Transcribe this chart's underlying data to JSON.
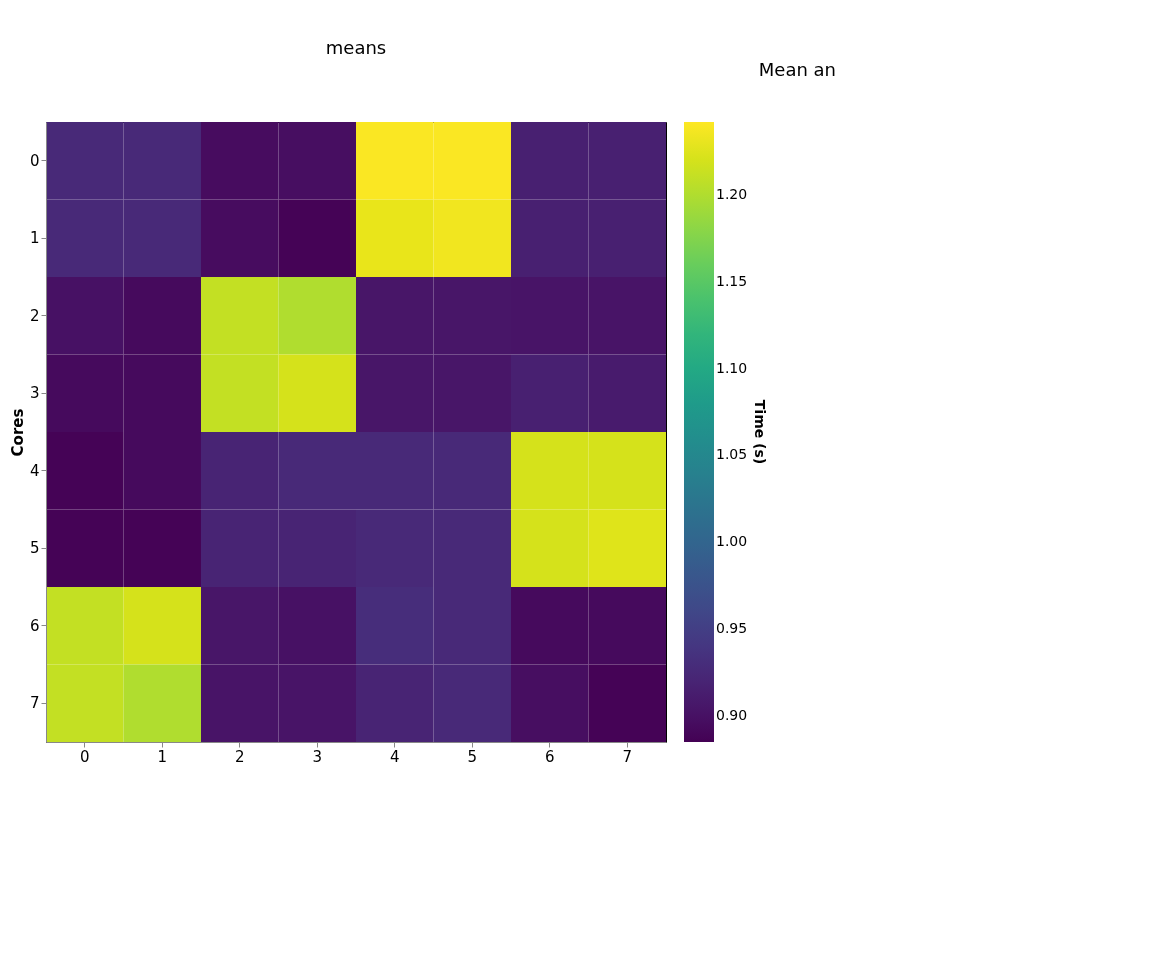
{
  "chart_data": {
    "type": "heatmap",
    "title": "means",
    "ylabel": "Cores",
    "clabel": "Time (s)",
    "annotations": [
      "Mean an"
    ],
    "categories": [
      "0",
      "1",
      "2",
      "3",
      "4",
      "5",
      "6",
      "7"
    ],
    "y_categories": [
      "0",
      "1",
      "2",
      "3",
      "4",
      "5",
      "6",
      "7"
    ],
    "cells": [
      [
        0.925,
        0.925,
        0.895,
        0.897,
        1.24,
        1.24,
        0.915,
        0.915
      ],
      [
        0.925,
        0.925,
        0.895,
        0.887,
        1.23,
        1.235,
        0.915,
        0.915
      ],
      [
        0.9,
        0.893,
        1.21,
        1.2,
        0.905,
        0.905,
        0.903,
        0.903
      ],
      [
        0.893,
        0.893,
        1.21,
        1.22,
        0.905,
        0.905,
        0.915,
        0.91
      ],
      [
        0.887,
        0.893,
        0.92,
        0.925,
        0.925,
        0.925,
        1.22,
        1.22
      ],
      [
        0.887,
        0.887,
        0.92,
        0.92,
        0.925,
        0.925,
        1.22,
        1.225
      ],
      [
        1.21,
        1.22,
        0.905,
        0.9,
        0.93,
        0.925,
        0.893,
        0.893
      ],
      [
        1.21,
        1.2,
        0.903,
        0.903,
        0.92,
        0.925,
        0.897,
        0.887
      ]
    ],
    "clim": [
      0.885,
      1.242
    ],
    "cticks": [
      {
        "value": 0.9,
        "label": "0.90"
      },
      0.95,
      {
        "value": 1.0,
        "label": "1.00"
      },
      1.05,
      {
        "value": 1.1,
        "label": "1.10"
      },
      1.15,
      {
        "value": 1.2,
        "label": "1.20"
      }
    ],
    "grid": false
  }
}
